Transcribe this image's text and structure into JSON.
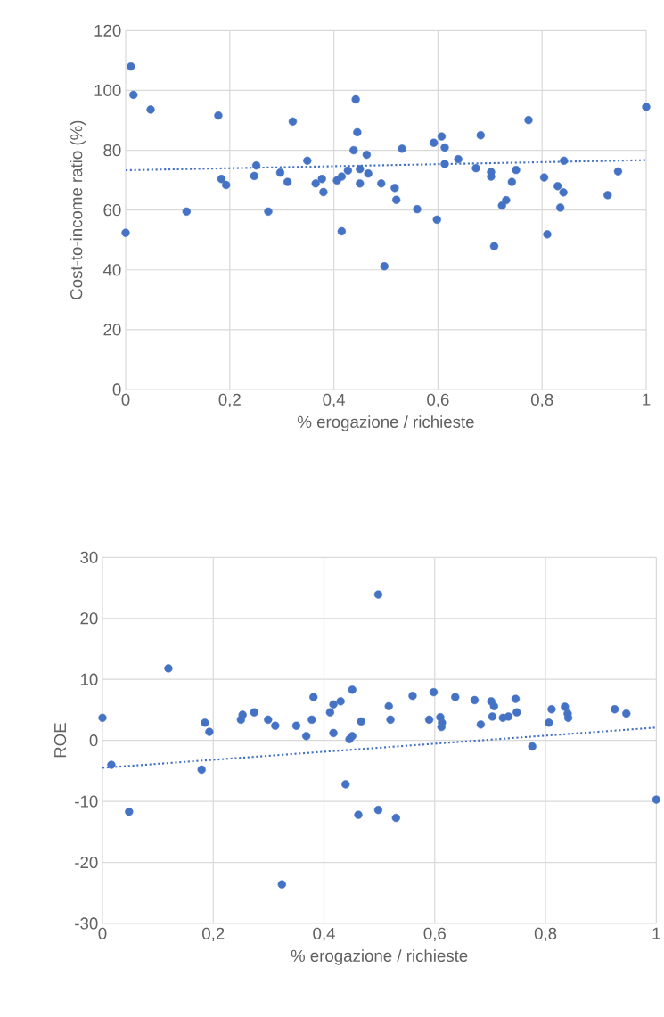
{
  "chart_data": [
    {
      "type": "scatter",
      "xlabel": "% erogazione / richieste",
      "ylabel": "Cost-to-income ratio (%)",
      "xlim": [
        0,
        1
      ],
      "ylim": [
        0,
        120
      ],
      "xticks": [
        0,
        {
          "value": 0.2,
          "label": "0,2"
        },
        {
          "value": 0.4,
          "label": "0,4"
        },
        {
          "value": 0.6,
          "label": "0,6"
        },
        {
          "value": 0.8,
          "label": "0,8"
        },
        1
      ],
      "yticks": [
        0,
        20,
        40,
        60,
        80,
        100,
        120
      ],
      "grid": true,
      "series": [
        {
          "color": "#4472c4",
          "marker": "circle",
          "x": [
            0.01,
            0.015,
            0.048,
            0.178,
            0.321,
            0.442,
            0.445,
            0.438,
            0.463,
            0.349,
            0.251,
            0.247,
            0.297,
            0.311,
            0.184,
            0.193,
            0.365,
            0.377,
            0.38,
            0.406,
            0.415,
            0.427,
            0.45,
            0.466,
            0.45,
            0.491,
            0.117,
            0.274,
            0.0,
            0.415,
            0.497,
            0.517,
            0.52,
            0.531,
            0.56,
            0.592,
            0.607,
            0.613,
            0.613,
            0.598,
            0.639,
            0.673,
            0.682,
            0.702,
            0.702,
            0.708,
            0.723,
            0.731,
            0.742,
            0.75,
            0.774,
            0.804,
            0.81,
            0.83,
            0.841,
            0.835,
            0.842,
            0.926,
            0.946,
            1.0
          ],
          "values": [
            108,
            98.5,
            93.6,
            91.6,
            89.6,
            97,
            86,
            80,
            78.5,
            76.5,
            74.9,
            71.4,
            72.5,
            69.4,
            70.4,
            68.4,
            68.9,
            70.4,
            66,
            69.9,
            71.2,
            73.2,
            73.7,
            72.2,
            68.9,
            68.9,
            59.5,
            59.5,
            52.4,
            52.9,
            41.2,
            67.4,
            63.4,
            80.5,
            60.3,
            82.5,
            84.6,
            80.9,
            75.4,
            56.8,
            77,
            74,
            85,
            72.7,
            71.2,
            47.9,
            61.5,
            63.3,
            69.4,
            73.4,
            90.1,
            70.9,
            51.9,
            68,
            65.9,
            60.8,
            76.5,
            65,
            72.9,
            94.5
          ]
        },
        {
          "type": "line",
          "color": "#4472c4",
          "line_style": "dotted",
          "marker": "none",
          "x": [
            0,
            1
          ],
          "values": [
            73.3,
            76.7
          ]
        }
      ]
    },
    {
      "type": "scatter",
      "xlabel": "% erogazione / richieste",
      "ylabel": "ROE",
      "xlim": [
        0,
        1
      ],
      "ylim": [
        -30,
        30
      ],
      "xticks": [
        0,
        {
          "value": 0.2,
          "label": "0,2"
        },
        {
          "value": 0.4,
          "label": "0,4"
        },
        {
          "value": 0.6,
          "label": "0,6"
        },
        {
          "value": 0.8,
          "label": "0,8"
        },
        1
      ],
      "yticks": [
        -30,
        -20,
        -10,
        0,
        10,
        20,
        30
      ],
      "grid": true,
      "series": [
        {
          "color": "#4472c4",
          "marker": "circle",
          "x": [
            0.0,
            0.016,
            0.048,
            0.119,
            0.185,
            0.193,
            0.179,
            0.25,
            0.253,
            0.274,
            0.299,
            0.312,
            0.324,
            0.35,
            0.368,
            0.378,
            0.381,
            0.411,
            0.417,
            0.43,
            0.417,
            0.439,
            0.446,
            0.451,
            0.451,
            0.462,
            0.467,
            0.498,
            0.498,
            0.53,
            0.517,
            0.52,
            0.56,
            0.59,
            0.598,
            0.61,
            0.613,
            0.612,
            0.637,
            0.672,
            0.683,
            0.702,
            0.707,
            0.704,
            0.723,
            0.733,
            0.746,
            0.748,
            0.776,
            0.811,
            0.806,
            0.835,
            0.84,
            0.841,
            0.925,
            0.946,
            1.0
          ],
          "values": [
            3.7,
            -4,
            -11.7,
            11.8,
            2.9,
            1.4,
            -4.8,
            3.4,
            4.2,
            4.6,
            3.4,
            2.4,
            -23.6,
            2.4,
            0.7,
            3.4,
            7.1,
            4.6,
            5.9,
            6.4,
            1.2,
            -7.2,
            0.2,
            0.7,
            8.3,
            -12.2,
            3.1,
            23.9,
            -11.4,
            -12.7,
            5.6,
            3.4,
            7.3,
            3.4,
            7.9,
            3.8,
            2.9,
            2.2,
            7.1,
            6.6,
            2.6,
            6.4,
            5.6,
            3.9,
            3.7,
            3.9,
            6.8,
            4.6,
            -1,
            5.1,
            2.9,
            5.5,
            4.4,
            3.7,
            5.1,
            4.4,
            -9.7
          ]
        },
        {
          "type": "line",
          "color": "#4472c4",
          "line_style": "dotted",
          "marker": "none",
          "x": [
            0,
            1
          ],
          "values": [
            -4.5,
            2.1
          ]
        }
      ]
    }
  ]
}
